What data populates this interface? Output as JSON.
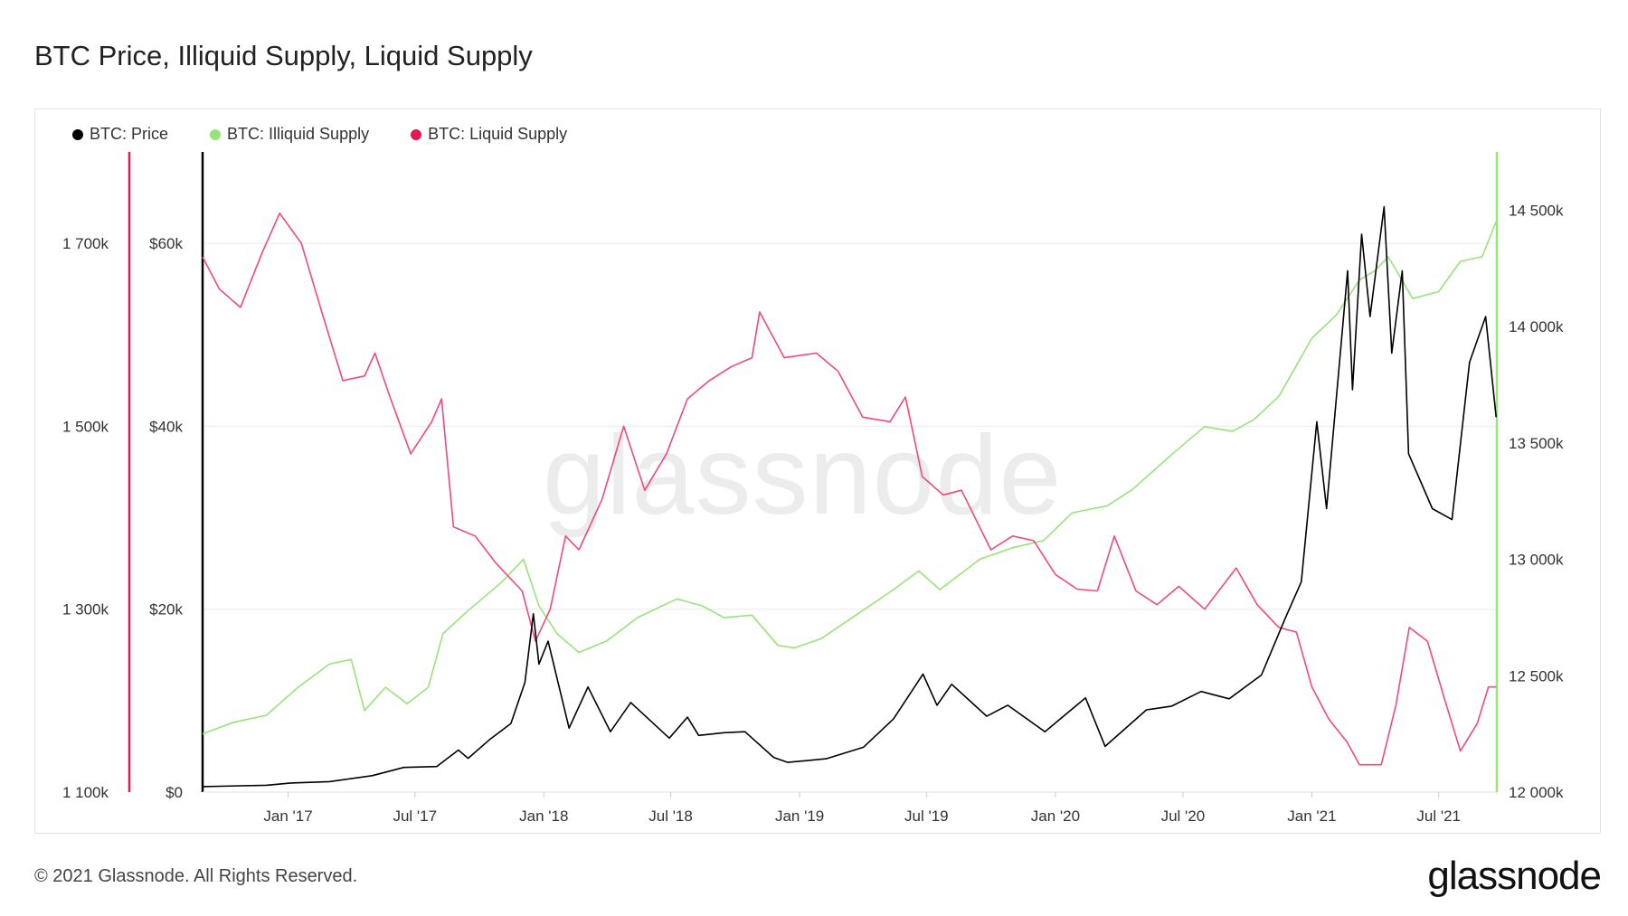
{
  "header": {
    "title": "BTC Price, Illiquid Supply, Liquid Supply"
  },
  "watermark": "glassnode",
  "footer": {
    "copyright": "© 2021 Glassnode. All Rights Reserved.",
    "brand": "glassnode"
  },
  "chart_data": {
    "type": "line",
    "grid": true,
    "legend_position": "top-left",
    "x_ticks": [
      "Jan '17",
      "Jul '17",
      "Jan '18",
      "Jul '18",
      "Jan '19",
      "Jul '19",
      "Jan '20",
      "Jul '20",
      "Jan '21",
      "Jul '21"
    ],
    "axes": {
      "liquid": {
        "side": "left-outer",
        "range": [
          1100000,
          1800000
        ],
        "ticks": [
          {
            "v": 1100000,
            "label": "1 100k"
          },
          {
            "v": 1300000,
            "label": "1 300k"
          },
          {
            "v": 1500000,
            "label": "1 500k"
          },
          {
            "v": 1700000,
            "label": "1 700k"
          }
        ]
      },
      "price": {
        "side": "left-inner",
        "range": [
          0,
          70000
        ],
        "ticks": [
          {
            "v": 0,
            "label": "$0"
          },
          {
            "v": 20000,
            "label": "$20k"
          },
          {
            "v": 40000,
            "label": "$40k"
          },
          {
            "v": 60000,
            "label": "$60k"
          }
        ]
      },
      "illiquid": {
        "side": "right",
        "range": [
          12000000,
          14750000
        ],
        "ticks": [
          {
            "v": 12000000,
            "label": "12 000k"
          },
          {
            "v": 12500000,
            "label": "12 500k"
          },
          {
            "v": 13000000,
            "label": "13 000k"
          },
          {
            "v": 13500000,
            "label": "13 500k"
          },
          {
            "v": 14000000,
            "label": "14 000k"
          },
          {
            "v": 14500000,
            "label": "14 500k"
          }
        ]
      }
    },
    "series": [
      {
        "name": "BTC: Price",
        "color": "#000000",
        "axis": "price",
        "points": [
          [
            "2016-09-01",
            600
          ],
          [
            "2016-12-01",
            750
          ],
          [
            "2017-01-05",
            1000
          ],
          [
            "2017-03-01",
            1150
          ],
          [
            "2017-05-01",
            1800
          ],
          [
            "2017-06-15",
            2700
          ],
          [
            "2017-08-01",
            2800
          ],
          [
            "2017-09-01",
            4600
          ],
          [
            "2017-09-15",
            3700
          ],
          [
            "2017-10-15",
            5700
          ],
          [
            "2017-11-15",
            7500
          ],
          [
            "2017-12-05",
            12000
          ],
          [
            "2017-12-17",
            19500
          ],
          [
            "2017-12-25",
            14000
          ],
          [
            "2018-01-07",
            16500
          ],
          [
            "2018-02-06",
            7000
          ],
          [
            "2018-03-05",
            11500
          ],
          [
            "2018-04-06",
            6600
          ],
          [
            "2018-05-05",
            9800
          ],
          [
            "2018-06-29",
            5900
          ],
          [
            "2018-07-25",
            8200
          ],
          [
            "2018-08-10",
            6200
          ],
          [
            "2018-09-15",
            6500
          ],
          [
            "2018-10-15",
            6600
          ],
          [
            "2018-11-25",
            3800
          ],
          [
            "2018-12-15",
            3250
          ],
          [
            "2019-02-08",
            3650
          ],
          [
            "2019-04-02",
            4900
          ],
          [
            "2019-05-15",
            8000
          ],
          [
            "2019-06-26",
            12900
          ],
          [
            "2019-07-16",
            9500
          ],
          [
            "2019-08-06",
            11800
          ],
          [
            "2019-09-25",
            8300
          ],
          [
            "2019-10-25",
            9500
          ],
          [
            "2019-12-17",
            6600
          ],
          [
            "2020-02-13",
            10300
          ],
          [
            "2020-03-12",
            5000
          ],
          [
            "2020-05-10",
            9000
          ],
          [
            "2020-06-15",
            9400
          ],
          [
            "2020-07-27",
            11000
          ],
          [
            "2020-09-05",
            10200
          ],
          [
            "2020-10-21",
            12800
          ],
          [
            "2020-11-24",
            19000
          ],
          [
            "2020-12-17",
            23000
          ],
          [
            "2021-01-08",
            40500
          ],
          [
            "2021-01-22",
            31000
          ],
          [
            "2021-02-21",
            57000
          ],
          [
            "2021-02-28",
            44000
          ],
          [
            "2021-03-13",
            61000
          ],
          [
            "2021-03-25",
            52000
          ],
          [
            "2021-04-14",
            64000
          ],
          [
            "2021-04-25",
            48000
          ],
          [
            "2021-05-10",
            57000
          ],
          [
            "2021-05-19",
            37000
          ],
          [
            "2021-06-22",
            31000
          ],
          [
            "2021-07-20",
            29800
          ],
          [
            "2021-08-14",
            47000
          ],
          [
            "2021-09-06",
            52000
          ],
          [
            "2021-09-21",
            41000
          ]
        ]
      },
      {
        "name": "BTC: Illiquid Supply",
        "color": "#98e37a",
        "axis": "illiquid",
        "points": [
          [
            "2016-09-01",
            12250000
          ],
          [
            "2016-10-15",
            12300000
          ],
          [
            "2016-12-01",
            12330000
          ],
          [
            "2017-01-15",
            12450000
          ],
          [
            "2017-03-01",
            12550000
          ],
          [
            "2017-04-01",
            12570000
          ],
          [
            "2017-04-20",
            12350000
          ],
          [
            "2017-05-20",
            12450000
          ],
          [
            "2017-06-20",
            12380000
          ],
          [
            "2017-07-20",
            12450000
          ],
          [
            "2017-08-10",
            12680000
          ],
          [
            "2017-09-15",
            12780000
          ],
          [
            "2017-11-01",
            12900000
          ],
          [
            "2017-12-03",
            13000000
          ],
          [
            "2017-12-25",
            12800000
          ],
          [
            "2018-01-20",
            12680000
          ],
          [
            "2018-02-20",
            12600000
          ],
          [
            "2018-04-01",
            12650000
          ],
          [
            "2018-05-15",
            12750000
          ],
          [
            "2018-07-10",
            12830000
          ],
          [
            "2018-08-15",
            12800000
          ],
          [
            "2018-09-15",
            12750000
          ],
          [
            "2018-10-25",
            12760000
          ],
          [
            "2018-12-01",
            12630000
          ],
          [
            "2018-12-25",
            12620000
          ],
          [
            "2019-02-01",
            12660000
          ],
          [
            "2019-04-01",
            12780000
          ],
          [
            "2019-05-15",
            12870000
          ],
          [
            "2019-06-20",
            12950000
          ],
          [
            "2019-07-20",
            12870000
          ],
          [
            "2019-09-15",
            13000000
          ],
          [
            "2019-11-01",
            13050000
          ],
          [
            "2019-12-15",
            13080000
          ],
          [
            "2020-01-25",
            13200000
          ],
          [
            "2020-03-15",
            13230000
          ],
          [
            "2020-04-20",
            13300000
          ],
          [
            "2020-06-15",
            13450000
          ],
          [
            "2020-08-01",
            13570000
          ],
          [
            "2020-09-10",
            13550000
          ],
          [
            "2020-10-10",
            13600000
          ],
          [
            "2020-11-15",
            13700000
          ],
          [
            "2021-01-01",
            13950000
          ],
          [
            "2021-02-05",
            14050000
          ],
          [
            "2021-03-10",
            14200000
          ],
          [
            "2021-04-01",
            14240000
          ],
          [
            "2021-04-20",
            14300000
          ],
          [
            "2021-05-25",
            14120000
          ],
          [
            "2021-07-01",
            14150000
          ],
          [
            "2021-08-01",
            14280000
          ],
          [
            "2021-09-01",
            14300000
          ],
          [
            "2021-09-21",
            14450000
          ]
        ]
      },
      {
        "name": "BTC: Liquid Supply",
        "color": "#f2487a",
        "axis": "liquid",
        "points": [
          [
            "2016-09-01",
            1685000
          ],
          [
            "2016-09-25",
            1650000
          ],
          [
            "2016-10-25",
            1630000
          ],
          [
            "2016-11-25",
            1690000
          ],
          [
            "2016-12-20",
            1733000
          ],
          [
            "2017-01-20",
            1700000
          ],
          [
            "2017-02-20",
            1620000
          ],
          [
            "2017-03-20",
            1550000
          ],
          [
            "2017-04-20",
            1555000
          ],
          [
            "2017-05-05",
            1580000
          ],
          [
            "2017-05-25",
            1535000
          ],
          [
            "2017-06-25",
            1470000
          ],
          [
            "2017-07-25",
            1505000
          ],
          [
            "2017-08-08",
            1530000
          ],
          [
            "2017-08-25",
            1390000
          ],
          [
            "2017-09-25",
            1380000
          ],
          [
            "2017-10-25",
            1350000
          ],
          [
            "2017-12-01",
            1320000
          ],
          [
            "2017-12-20",
            1265000
          ],
          [
            "2018-01-10",
            1300000
          ],
          [
            "2018-02-01",
            1380000
          ],
          [
            "2018-02-20",
            1365000
          ],
          [
            "2018-03-25",
            1420000
          ],
          [
            "2018-04-25",
            1500000
          ],
          [
            "2018-05-25",
            1430000
          ],
          [
            "2018-06-25",
            1470000
          ],
          [
            "2018-07-25",
            1530000
          ],
          [
            "2018-08-25",
            1550000
          ],
          [
            "2018-09-25",
            1565000
          ],
          [
            "2018-10-25",
            1575000
          ],
          [
            "2018-11-05",
            1625000
          ],
          [
            "2018-12-10",
            1575000
          ],
          [
            "2019-01-25",
            1580000
          ],
          [
            "2019-02-25",
            1560000
          ],
          [
            "2019-04-01",
            1510000
          ],
          [
            "2019-05-10",
            1505000
          ],
          [
            "2019-06-01",
            1532000
          ],
          [
            "2019-06-25",
            1445000
          ],
          [
            "2019-07-25",
            1425000
          ],
          [
            "2019-08-20",
            1430000
          ],
          [
            "2019-10-01",
            1365000
          ],
          [
            "2019-11-01",
            1380000
          ],
          [
            "2019-12-01",
            1375000
          ],
          [
            "2020-01-01",
            1338000
          ],
          [
            "2020-02-01",
            1322000
          ],
          [
            "2020-03-01",
            1320000
          ],
          [
            "2020-03-25",
            1380000
          ],
          [
            "2020-04-25",
            1320000
          ],
          [
            "2020-05-25",
            1305000
          ],
          [
            "2020-06-25",
            1325000
          ],
          [
            "2020-08-01",
            1300000
          ],
          [
            "2020-09-15",
            1345000
          ],
          [
            "2020-10-15",
            1305000
          ],
          [
            "2020-11-15",
            1280000
          ],
          [
            "2020-12-10",
            1275000
          ],
          [
            "2021-01-01",
            1215000
          ],
          [
            "2021-01-25",
            1180000
          ],
          [
            "2021-02-20",
            1155000
          ],
          [
            "2021-03-10",
            1130000
          ],
          [
            "2021-04-10",
            1130000
          ],
          [
            "2021-05-01",
            1195000
          ],
          [
            "2021-05-20",
            1280000
          ],
          [
            "2021-06-15",
            1265000
          ],
          [
            "2021-07-10",
            1200000
          ],
          [
            "2021-08-01",
            1145000
          ],
          [
            "2021-08-25",
            1175000
          ],
          [
            "2021-09-10",
            1215000
          ],
          [
            "2021-09-21",
            1215000
          ]
        ]
      }
    ]
  }
}
